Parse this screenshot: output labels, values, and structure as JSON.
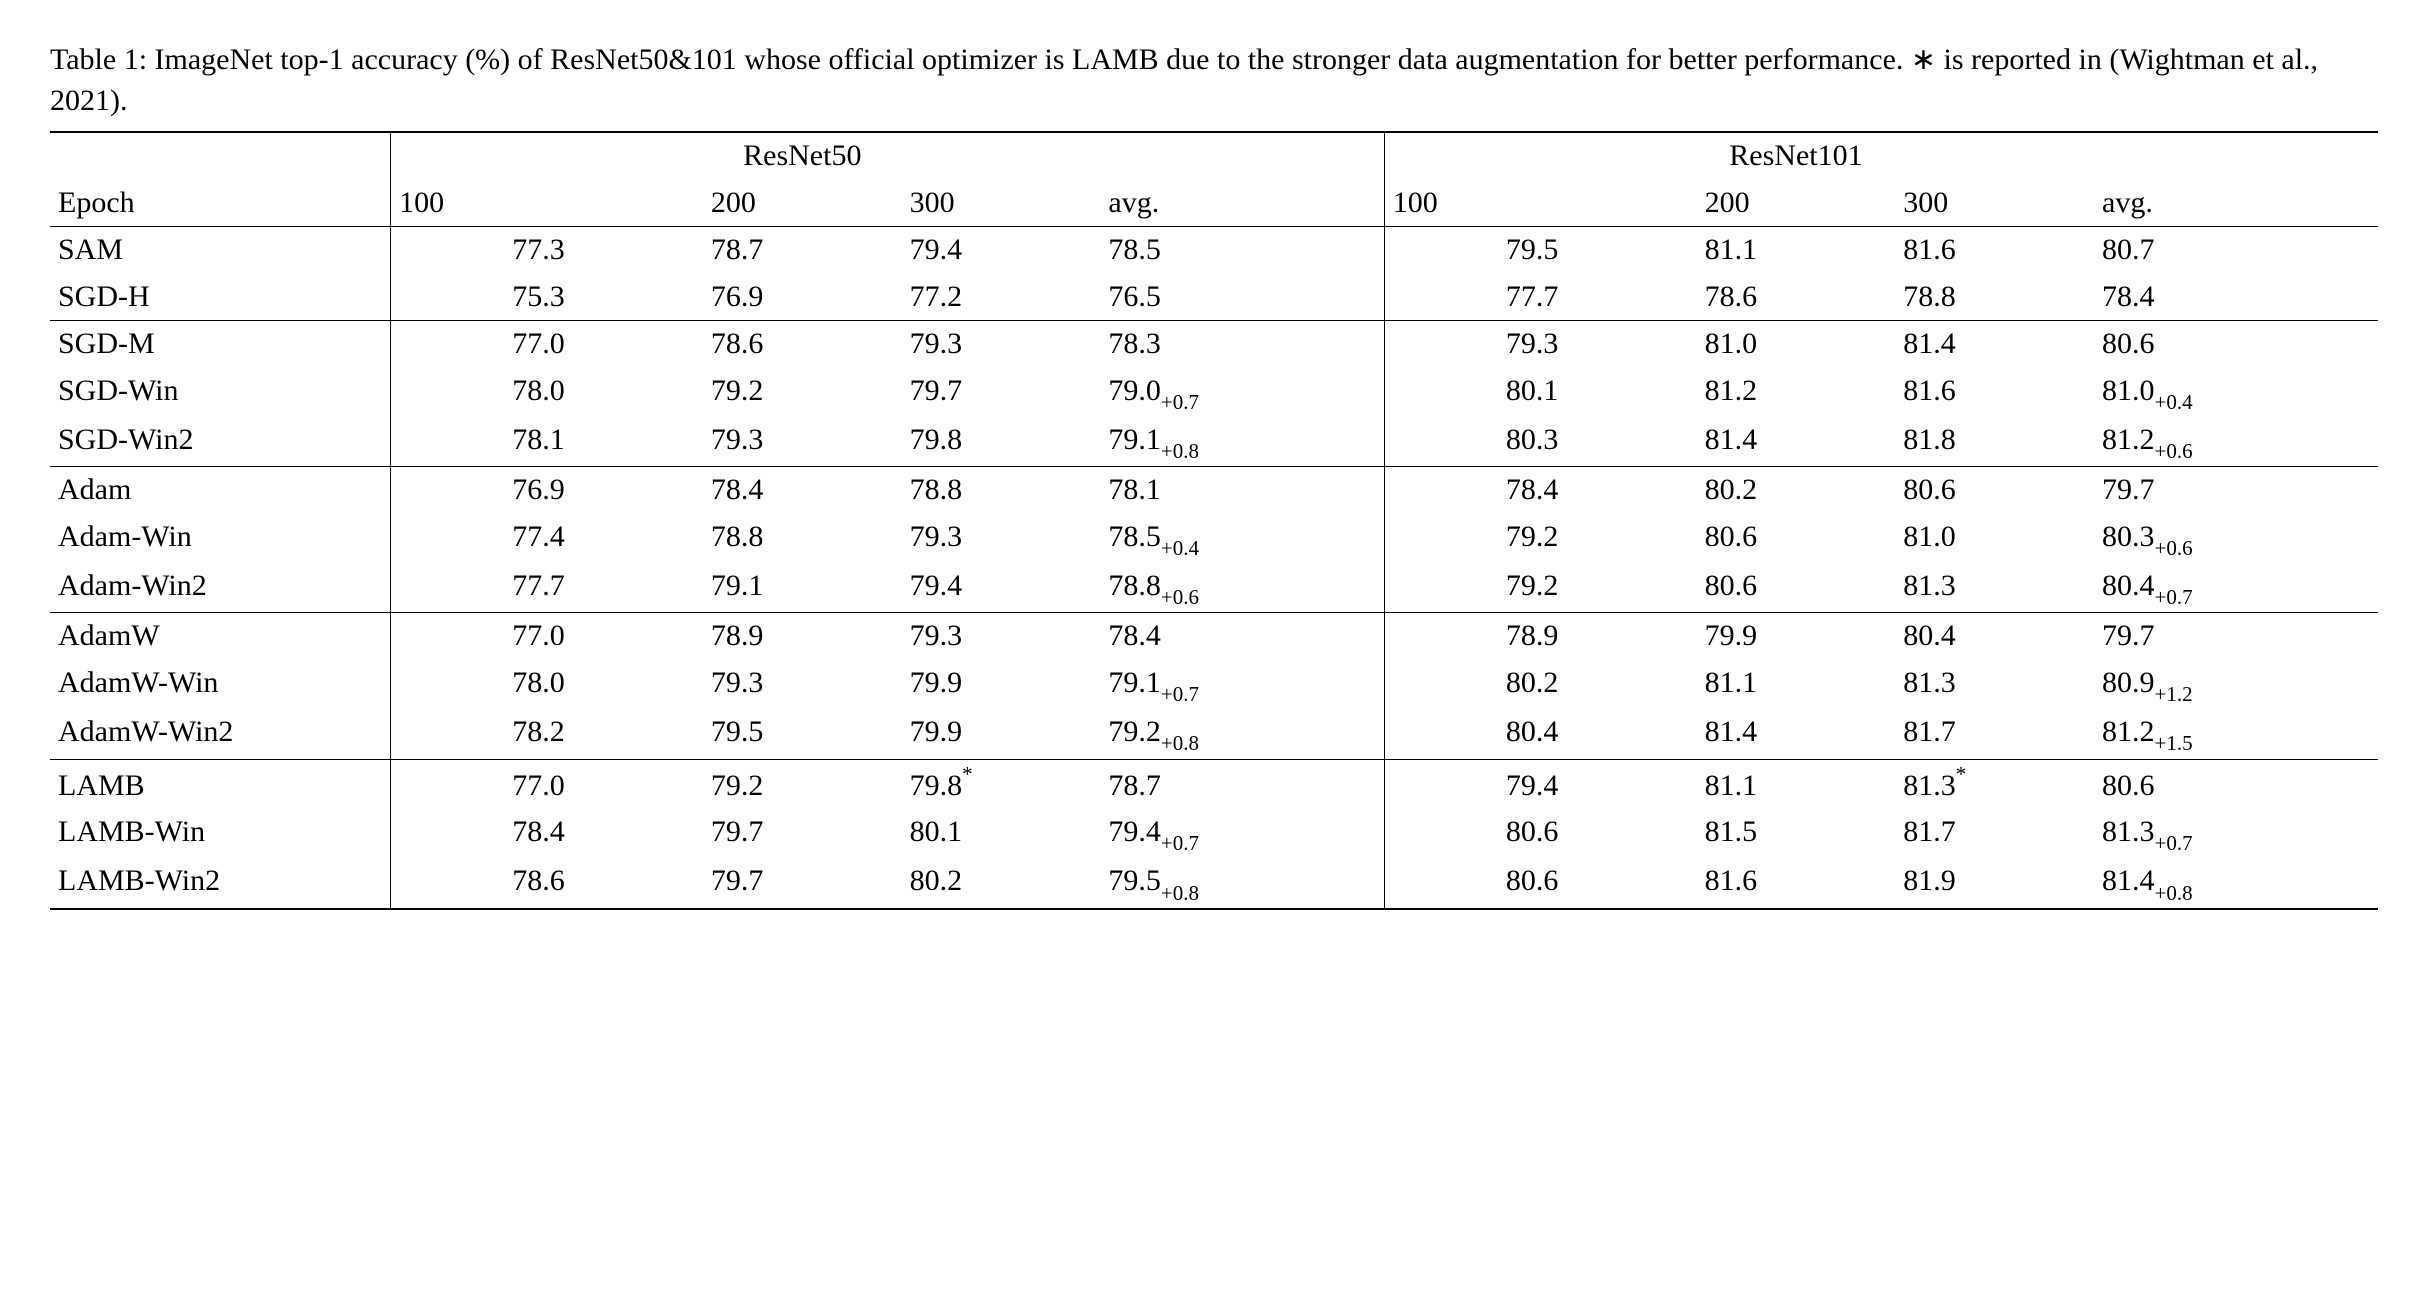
{
  "caption_parts": {
    "prefix": "Table 1: ImageNet top-1 accuracy (%) of ResNet50&101 whose official optimizer is LAMB due to the stronger data augmentation for better performance. ",
    "star": "∗",
    "suffix": " is reported in (Wightman et al., 2021)."
  },
  "headers": {
    "epoch": "Epoch",
    "group1": "ResNet50",
    "group2": "ResNet101",
    "sub": [
      "100",
      "200",
      "300",
      "avg.",
      "100",
      "200",
      "300",
      "avg."
    ]
  },
  "blocks": [
    {
      "rows": [
        {
          "name": "SAM",
          "cells": [
            [
              "77.3"
            ],
            [
              "78.7"
            ],
            [
              "79.4"
            ],
            [
              "78.5"
            ],
            [
              "79.5"
            ],
            [
              "81.1"
            ],
            [
              "81.6"
            ],
            [
              "80.7"
            ]
          ]
        },
        {
          "name": "SGD-H",
          "cells": [
            [
              "75.3"
            ],
            [
              "76.9"
            ],
            [
              "77.2"
            ],
            [
              "76.5"
            ],
            [
              "77.7"
            ],
            [
              "78.6"
            ],
            [
              "78.8"
            ],
            [
              "78.4"
            ]
          ]
        }
      ]
    },
    {
      "rows": [
        {
          "name": "SGD-M",
          "cells": [
            [
              "77.0"
            ],
            [
              "78.6"
            ],
            [
              "79.3"
            ],
            [
              "78.3"
            ],
            [
              "79.3"
            ],
            [
              "81.0"
            ],
            [
              "81.4"
            ],
            [
              "80.6"
            ]
          ]
        },
        {
          "name": "SGD-Win",
          "cells": [
            [
              "78.0"
            ],
            [
              "79.2"
            ],
            [
              "79.7"
            ],
            [
              "79.0",
              "+0.7"
            ],
            [
              "80.1"
            ],
            [
              "81.2"
            ],
            [
              "81.6"
            ],
            [
              "81.0",
              "+0.4"
            ]
          ]
        },
        {
          "name": "SGD-Win2",
          "cells": [
            [
              "78.1"
            ],
            [
              "79.3"
            ],
            [
              "79.8"
            ],
            [
              "79.1",
              "+0.8"
            ],
            [
              "80.3"
            ],
            [
              "81.4"
            ],
            [
              "81.8"
            ],
            [
              "81.2",
              "+0.6"
            ]
          ]
        }
      ]
    },
    {
      "rows": [
        {
          "name": "Adam",
          "cells": [
            [
              "76.9"
            ],
            [
              "78.4"
            ],
            [
              "78.8"
            ],
            [
              "78.1"
            ],
            [
              "78.4"
            ],
            [
              "80.2"
            ],
            [
              "80.6"
            ],
            [
              "79.7"
            ]
          ]
        },
        {
          "name": "Adam-Win",
          "cells": [
            [
              "77.4"
            ],
            [
              "78.8"
            ],
            [
              "79.3"
            ],
            [
              "78.5",
              "+0.4"
            ],
            [
              "79.2"
            ],
            [
              "80.6"
            ],
            [
              "81.0"
            ],
            [
              "80.3",
              "+0.6"
            ]
          ]
        },
        {
          "name": "Adam-Win2",
          "cells": [
            [
              "77.7"
            ],
            [
              "79.1"
            ],
            [
              "79.4"
            ],
            [
              "78.8",
              "+0.6"
            ],
            [
              "79.2"
            ],
            [
              "80.6"
            ],
            [
              "81.3"
            ],
            [
              "80.4",
              "+0.7"
            ]
          ]
        }
      ]
    },
    {
      "rows": [
        {
          "name": "AdamW",
          "cells": [
            [
              "77.0"
            ],
            [
              "78.9"
            ],
            [
              "79.3"
            ],
            [
              "78.4"
            ],
            [
              "78.9"
            ],
            [
              "79.9"
            ],
            [
              "80.4"
            ],
            [
              "79.7"
            ]
          ]
        },
        {
          "name": "AdamW-Win",
          "cells": [
            [
              "78.0"
            ],
            [
              "79.3"
            ],
            [
              "79.9"
            ],
            [
              "79.1",
              "+0.7"
            ],
            [
              "80.2"
            ],
            [
              "81.1"
            ],
            [
              "81.3"
            ],
            [
              "80.9",
              "+1.2"
            ]
          ]
        },
        {
          "name": "AdamW-Win2",
          "cells": [
            [
              "78.2"
            ],
            [
              "79.5"
            ],
            [
              "79.9"
            ],
            [
              "79.2",
              "+0.8"
            ],
            [
              "80.4"
            ],
            [
              "81.4"
            ],
            [
              "81.7"
            ],
            [
              "81.2",
              "+1.5"
            ]
          ]
        }
      ]
    },
    {
      "rows": [
        {
          "name": "LAMB",
          "cells": [
            [
              "77.0"
            ],
            [
              "79.2"
            ],
            [
              "79.8",
              "",
              "*"
            ],
            [
              "78.7"
            ],
            [
              "79.4"
            ],
            [
              "81.1"
            ],
            [
              "81.3",
              "",
              "*"
            ],
            [
              "80.6"
            ]
          ]
        },
        {
          "name": "LAMB-Win",
          "cells": [
            [
              "78.4"
            ],
            [
              "79.7"
            ],
            [
              "80.1"
            ],
            [
              "79.4",
              "+0.7"
            ],
            [
              "80.6"
            ],
            [
              "81.5"
            ],
            [
              "81.7"
            ],
            [
              "81.3",
              "+0.7"
            ]
          ]
        },
        {
          "name": "LAMB-Win2",
          "cells": [
            [
              "78.6"
            ],
            [
              "79.7"
            ],
            [
              "80.2"
            ],
            [
              "79.5",
              "+0.8"
            ],
            [
              "80.6"
            ],
            [
              "81.6"
            ],
            [
              "81.9"
            ],
            [
              "81.4",
              "+0.8"
            ]
          ]
        }
      ]
    }
  ]
}
